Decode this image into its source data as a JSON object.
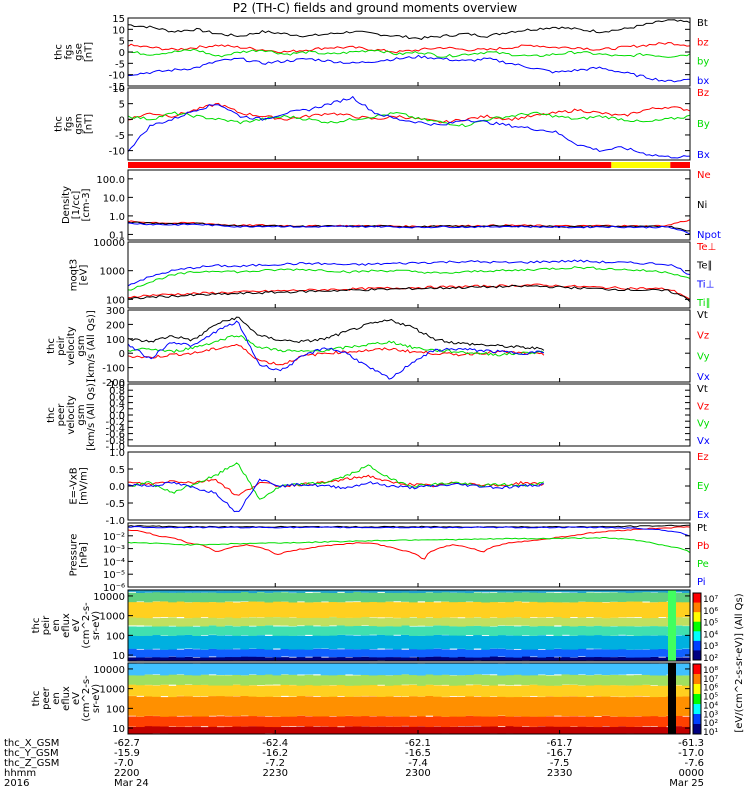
{
  "title": "P2 (TH-C) fields and ground moments overview",
  "colors": {
    "black": "#000000",
    "red": "#ff0000",
    "green": "#00dd00",
    "blue": "#0000ff",
    "yellow": "#ffff00"
  },
  "chart_data": [
    {
      "type": "line",
      "ylabel": [
        "thc",
        "fgs",
        "gse",
        "[nT]"
      ],
      "ylim": [
        -15,
        15
      ],
      "yticks": [
        "15",
        "10",
        "5",
        "0",
        "-5",
        "-10",
        "-15"
      ],
      "series": [
        {
          "name": "Bt",
          "color": "#000000",
          "values": [
            12,
            11,
            9,
            10,
            8,
            7,
            9,
            8,
            7,
            8,
            9,
            8,
            7,
            6,
            7,
            8,
            7,
            9,
            10,
            11,
            10,
            9,
            10,
            12,
            14,
            13
          ]
        },
        {
          "name": "bz",
          "color": "#ff0000",
          "values": [
            3,
            2,
            1,
            2,
            3,
            2,
            1,
            0,
            1,
            2,
            2,
            1,
            0,
            1,
            2,
            1,
            1,
            2,
            3,
            2,
            2,
            1,
            2,
            3,
            4,
            3
          ]
        },
        {
          "name": "by",
          "color": "#00dd00",
          "values": [
            0,
            -1,
            0,
            1,
            -2,
            0,
            1,
            -1,
            0,
            -1,
            0,
            1,
            -1,
            0,
            -2,
            -1,
            0,
            -1,
            -2,
            -1,
            0,
            -1,
            -2,
            -1,
            -2,
            -1
          ]
        },
        {
          "name": "bx",
          "color": "#0000ff",
          "values": [
            -10,
            -9,
            -8,
            -7,
            -4,
            -3,
            -5,
            -4,
            -3,
            -4,
            -5,
            -4,
            -3,
            -2,
            -3,
            -4,
            -3,
            -5,
            -7,
            -9,
            -8,
            -7,
            -9,
            -11,
            -13,
            -12
          ]
        }
      ]
    },
    {
      "type": "line",
      "ylabel": [
        "thc",
        "fgs",
        "gsm",
        "[nT]"
      ],
      "ylim": [
        -13,
        10
      ],
      "yticks": [
        "10",
        "5",
        "0",
        "-5",
        "-10"
      ],
      "series": [
        {
          "name": "Bz",
          "color": "#ff0000",
          "values": [
            0,
            2,
            1,
            3,
            5,
            2,
            1,
            0,
            1,
            2,
            1,
            0,
            1,
            0,
            -1,
            0,
            1,
            0,
            1,
            2,
            3,
            2,
            1,
            3,
            4,
            3
          ]
        },
        {
          "name": "By",
          "color": "#00dd00",
          "values": [
            1,
            0,
            2,
            1,
            0,
            -1,
            0,
            1,
            0,
            -1,
            0,
            1,
            2,
            0,
            -1,
            -2,
            0,
            1,
            2,
            1,
            0,
            1,
            0,
            -1,
            0,
            1
          ]
        },
        {
          "name": "Bx",
          "color": "#0000ff",
          "values": [
            -10,
            -2,
            0,
            3,
            5,
            1,
            0,
            2,
            3,
            5,
            7,
            2,
            0,
            -1,
            -2,
            0,
            -1,
            -2,
            -3,
            -4,
            -8,
            -10,
            -9,
            -11,
            -12,
            -12
          ]
        }
      ]
    },
    {
      "type": "line",
      "ylabel": [
        "Density",
        "[1/cc]",
        "[cm-3]"
      ],
      "ylog": true,
      "ylim": [
        0.05,
        300
      ],
      "yticks": [
        "100.0",
        "10.0",
        "1.0",
        "0.1"
      ],
      "series": [
        {
          "name": "Ne",
          "color": "#ff0000",
          "values": [
            0.5,
            0.45,
            0.4,
            0.42,
            0.35,
            0.3,
            0.32,
            0.3,
            0.28,
            0.3,
            0.29,
            0.3,
            0.28,
            0.27,
            0.3,
            0.29,
            0.3,
            0.31,
            0.3,
            0.29,
            0.28,
            0.3,
            0.29,
            0.28,
            0.3,
            0.6
          ]
        },
        {
          "name": "Ni",
          "color": "#000000",
          "values": [
            0.45,
            0.4,
            0.38,
            0.4,
            0.33,
            0.28,
            0.3,
            0.28,
            0.27,
            0.28,
            0.27,
            0.28,
            0.27,
            0.26,
            0.28,
            0.27,
            0.28,
            0.29,
            0.28,
            0.27,
            0.26,
            0.28,
            0.27,
            0.26,
            0.28,
            0.15
          ]
        },
        {
          "name": "Npot",
          "color": "#0000ff",
          "values": [
            0.4,
            0.35,
            0.33,
            0.35,
            0.3,
            0.26,
            0.28,
            0.27,
            0.25,
            0.27,
            0.26,
            0.27,
            0.25,
            0.24,
            0.26,
            0.25,
            0.26,
            0.27,
            0.26,
            0.25,
            0.24,
            0.26,
            0.25,
            0.24,
            0.25,
            0.1
          ]
        }
      ]
    },
    {
      "type": "line",
      "ylabel": [
        "moqt3",
        "[eV]"
      ],
      "ylog": true,
      "ylim": [
        50,
        10000
      ],
      "yticks": [
        "10000",
        "1000",
        "100"
      ],
      "series": [
        {
          "name": "Te⊥",
          "color": "#ff0000",
          "values": [
            120,
            140,
            150,
            160,
            170,
            180,
            190,
            200,
            210,
            220,
            230,
            240,
            250,
            260,
            270,
            280,
            290,
            300,
            320,
            300,
            280,
            260,
            250,
            240,
            230,
            100
          ]
        },
        {
          "name": "Te∥",
          "color": "#000000",
          "values": [
            100,
            120,
            130,
            140,
            150,
            160,
            170,
            180,
            190,
            200,
            210,
            220,
            230,
            240,
            250,
            260,
            270,
            280,
            290,
            270,
            250,
            230,
            220,
            210,
            200,
            90
          ]
        },
        {
          "name": "Ti⊥",
          "color": "#0000ff",
          "values": [
            300,
            600,
            1000,
            1300,
            1500,
            1400,
            1600,
            1700,
            1800,
            1700,
            1600,
            1700,
            1800,
            1900,
            2000,
            2100,
            2000,
            1900,
            2000,
            2100,
            2200,
            2000,
            1900,
            1800,
            1700,
            700
          ]
        },
        {
          "name": "Ti∥",
          "color": "#00dd00",
          "values": [
            200,
            400,
            700,
            900,
            1000,
            900,
            1000,
            1100,
            1100,
            1000,
            900,
            1000,
            1000,
            900,
            800,
            900,
            1000,
            1000,
            1100,
            1200,
            1300,
            1200,
            1100,
            1000,
            900,
            500
          ]
        }
      ]
    },
    {
      "type": "line",
      "ylabel": [
        "thc",
        "peir",
        "velocity",
        "gsm",
        "[km/s (All Qs)]"
      ],
      "ylim": [
        -200,
        300
      ],
      "yticks": [
        "300",
        "200",
        "100",
        "0",
        "-100",
        "-200"
      ],
      "series": [
        {
          "name": "Vt",
          "color": "#000000",
          "values": [
            100,
            80,
            120,
            90,
            200,
            250,
            120,
            90,
            80,
            100,
            150,
            200,
            230,
            180,
            100,
            70,
            60,
            50,
            40,
            30
          ]
        },
        {
          "name": "Vz",
          "color": "#ff0000",
          "values": [
            -20,
            -30,
            -10,
            0,
            30,
            60,
            -50,
            -80,
            -20,
            0,
            10,
            20,
            30,
            10,
            0,
            -10,
            0,
            10,
            0,
            -10
          ]
        },
        {
          "name": "Vy",
          "color": "#00dd00",
          "values": [
            20,
            30,
            10,
            40,
            80,
            130,
            40,
            20,
            10,
            20,
            40,
            60,
            80,
            40,
            20,
            10,
            0,
            -10,
            0,
            10
          ]
        },
        {
          "name": "Vx",
          "color": "#0000ff",
          "values": [
            60,
            -40,
            80,
            50,
            150,
            220,
            -80,
            -120,
            -20,
            40,
            0,
            -100,
            -180,
            -60,
            20,
            30,
            20,
            10,
            0,
            10
          ]
        }
      ]
    },
    {
      "type": "line",
      "ylabel": [
        "thc",
        "peer",
        "velocity",
        "gsm",
        "[km/s (All Qs)]"
      ],
      "ylim": [
        -1,
        1
      ],
      "yticks": [
        "1.0",
        "0.8",
        "0.6",
        "0.4",
        "0.2",
        "0.0",
        "-0.2",
        "-0.4",
        "-0.6",
        "-0.8",
        "-1.0"
      ],
      "series": [
        {
          "name": "Vt",
          "color": "#000000",
          "values": []
        },
        {
          "name": "Vz",
          "color": "#ff0000",
          "values": []
        },
        {
          "name": "Vy",
          "color": "#00dd00",
          "values": []
        },
        {
          "name": "Vx",
          "color": "#0000ff",
          "values": []
        }
      ]
    },
    {
      "type": "line",
      "ylabel": [
        "E=-VxB",
        "[mV/m]"
      ],
      "ylim": [
        -1,
        1
      ],
      "yticks": [
        "1.0",
        "0.5",
        "0.0",
        "-0.5",
        "-1.0"
      ],
      "series": [
        {
          "name": "Ez",
          "color": "#ff0000",
          "values": [
            0.1,
            0.05,
            0.15,
            0.1,
            0.2,
            -0.3,
            0.1,
            0.0,
            0.05,
            0.1,
            0.2,
            0.3,
            0.1,
            0.05,
            0.0,
            0.1,
            0.05,
            0.0,
            0.1,
            0.05
          ]
        },
        {
          "name": "Ey",
          "color": "#00dd00",
          "values": [
            0.0,
            0.1,
            -0.2,
            0.05,
            0.3,
            0.7,
            -0.4,
            0.0,
            0.05,
            0.1,
            0.3,
            0.6,
            0.2,
            0.0,
            0.05,
            0.1,
            0.0,
            0.05,
            0.0,
            0.1
          ]
        },
        {
          "name": "Ex",
          "color": "#0000ff",
          "values": [
            0.05,
            0.0,
            0.1,
            -0.05,
            -0.2,
            -0.8,
            0.2,
            0.0,
            0.05,
            0.0,
            -0.05,
            0.1,
            0.0,
            -0.05,
            0.0,
            0.05,
            0.0,
            -0.05,
            0.0,
            0.05
          ]
        }
      ]
    },
    {
      "type": "line",
      "ylabel": [
        "Pressure",
        "[nPa]"
      ],
      "ylog": true,
      "ylim": [
        1e-06,
        0.1
      ],
      "yticks": [
        "10⁻²",
        "10⁻³",
        "10⁻⁴",
        "10⁻⁵",
        "10⁻⁶"
      ],
      "series": [
        {
          "name": "Pt",
          "color": "#000000",
          "values": [
            0.06,
            0.055,
            0.05,
            0.05,
            0.05,
            0.05,
            0.05,
            0.05,
            0.05,
            0.05,
            0.05,
            0.05,
            0.05,
            0.05,
            0.05,
            0.05,
            0.05,
            0.055,
            0.06,
            0.065
          ]
        },
        {
          "name": "Pb",
          "color": "#ff0000",
          "values": [
            0.03,
            0.01,
            0.003,
            0.0005,
            0.002,
            0.0003,
            0.001,
            0.002,
            0.003,
            0.001,
            0.0001,
            0.002,
            0.0005,
            0.003,
            0.005,
            0.01,
            0.02,
            0.03,
            0.04,
            0.05
          ]
        },
        {
          "name": "Pe",
          "color": "#00dd00",
          "values": [
            0.003,
            0.0025,
            0.002,
            0.0022,
            0.0025,
            0.0028,
            0.003,
            0.0035,
            0.004,
            0.0045,
            0.005,
            0.005,
            0.0055,
            0.006,
            0.006,
            0.0065,
            0.007,
            0.005,
            0.002,
            0.0005
          ]
        },
        {
          "name": "Pi",
          "color": "#0000ff",
          "values": [
            0.05,
            0.045,
            0.045,
            0.045,
            0.045,
            0.045,
            0.045,
            0.045,
            0.045,
            0.045,
            0.045,
            0.045,
            0.045,
            0.045,
            0.045,
            0.045,
            0.045,
            0.04,
            0.03,
            0.01
          ]
        }
      ]
    },
    {
      "type": "heatmap",
      "ylabel": [
        "thc",
        "peir",
        "en",
        "eflux",
        "eV",
        "(cm^2-s-",
        "sr-eV)"
      ],
      "ylog": true,
      "ylim": [
        5,
        20000
      ],
      "yticks": [
        "10000",
        "1000",
        "100",
        "10"
      ],
      "energy_bands": [
        {
          "emin": 5,
          "emax": 8,
          "color": "#000080"
        },
        {
          "emin": 8,
          "emax": 20,
          "color": "#1060ff"
        },
        {
          "emin": 20,
          "emax": 100,
          "color": "#00b0e0"
        },
        {
          "emin": 100,
          "emax": 300,
          "color": "#40e0b0"
        },
        {
          "emin": 300,
          "emax": 800,
          "color": "#c0e060"
        },
        {
          "emin": 800,
          "emax": 5000,
          "color": "#ffd020"
        },
        {
          "emin": 5000,
          "emax": 15000,
          "color": "#60d080"
        },
        {
          "emin": 15000,
          "emax": 20000,
          "color": "#20a0d0"
        }
      ]
    },
    {
      "type": "heatmap",
      "ylabel": [
        "thc",
        "peer",
        "en",
        "eflux",
        "eV",
        "(cm^2-s-",
        "sr-eV)"
      ],
      "ylog": true,
      "ylim": [
        5,
        20000
      ],
      "yticks": [
        "10000",
        "1000",
        "100",
        "10"
      ],
      "energy_bands": [
        {
          "emin": 5,
          "emax": 12,
          "color": "#c00000"
        },
        {
          "emin": 12,
          "emax": 40,
          "color": "#ff4000"
        },
        {
          "emin": 40,
          "emax": 400,
          "color": "#ff9000"
        },
        {
          "emin": 400,
          "emax": 1500,
          "color": "#ffd020"
        },
        {
          "emin": 1500,
          "emax": 5000,
          "color": "#a0e060"
        },
        {
          "emin": 5000,
          "emax": 20000,
          "color": "#40c0ff"
        }
      ]
    }
  ],
  "quality_bar": [
    {
      "to": 0.86,
      "color": "#ff0000"
    },
    {
      "to": 0.965,
      "color": "#ffff00"
    },
    {
      "to": 1.0,
      "color": "#ff0000"
    }
  ],
  "colorbar": {
    "label": "[eV/(cm^2-s-sr-eV)] (All Qs)",
    "upper_ticks": [
      "10⁷",
      "10⁶",
      "10⁵",
      "10⁴",
      "10³",
      "10²"
    ],
    "lower_ticks": [
      "10⁸",
      "10⁷",
      "10⁶",
      "10⁵",
      "10⁴",
      "10³",
      "10²",
      "10¹"
    ]
  },
  "x_axis": {
    "row_labels": [
      "thc_X_GSM",
      "thc_Y_GSM",
      "thc_Z_GSM",
      "hhmm",
      "2016"
    ],
    "ticks": [
      {
        "frac": 0.0,
        "rows": [
          "-62.7",
          "-15.9",
          "-7.0",
          "2200",
          "Mar 24"
        ]
      },
      {
        "frac": 0.262,
        "rows": [
          "-62.4",
          "-16.2",
          "-7.2",
          "2230",
          ""
        ]
      },
      {
        "frac": 0.516,
        "rows": [
          "-62.1",
          "-16.5",
          "-7.4",
          "2300",
          ""
        ]
      },
      {
        "frac": 0.768,
        "rows": [
          "-61.7",
          "-16.7",
          "-7.5",
          "2330",
          ""
        ]
      },
      {
        "frac": 1.0,
        "rows": [
          "-61.3",
          "-17.0",
          "-7.6",
          "0000",
          "Mar 25"
        ]
      }
    ]
  }
}
